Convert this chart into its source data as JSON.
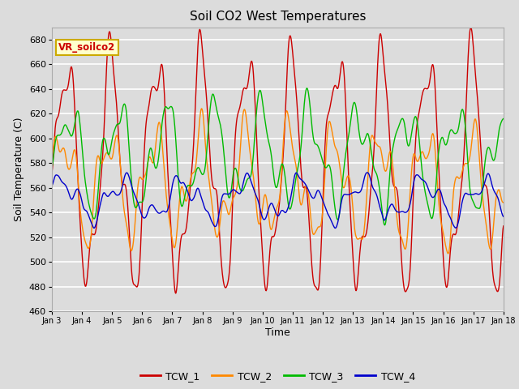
{
  "title": "Soil CO2 West Temperatures",
  "xlabel": "Time",
  "ylabel": "Soil Temperature (C)",
  "ylim": [
    460,
    690
  ],
  "background_color": "#dcdcdc",
  "plot_bg_color": "#dcdcdc",
  "series_colors": {
    "TCW_1": "#cc0000",
    "TCW_2": "#ff8800",
    "TCW_3": "#00bb00",
    "TCW_4": "#0000cc"
  },
  "legend_label": "VR_soilco2",
  "legend_box_color": "#ffffcc",
  "legend_box_edge": "#ccaa00",
  "x_tick_labels": [
    "Jan 3",
    "Jan 4",
    "Jan 5",
    "Jan 6",
    "Jan 7",
    "Jan 8",
    "Jan 9",
    "Jan 10",
    "Jan 11",
    "Jan 12",
    "Jan 13",
    "Jan 14",
    "Jan 15",
    "Jan 16",
    "Jan 17",
    "Jan 18"
  ],
  "num_points": 960,
  "seed": 42
}
